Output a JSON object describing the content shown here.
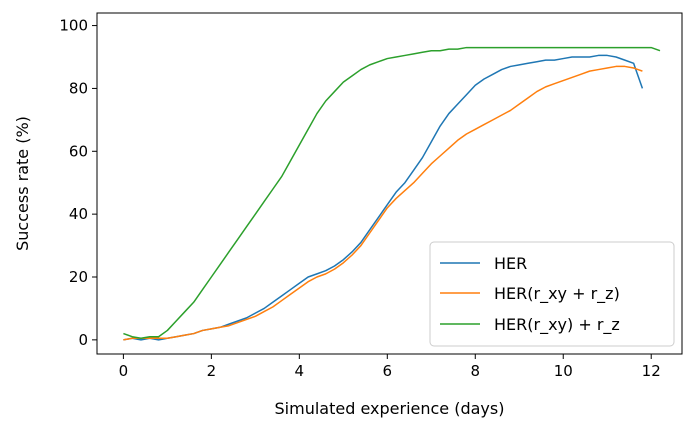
{
  "chart_data": {
    "type": "line",
    "title": "",
    "xlabel": "Simulated experience (days)",
    "ylabel": "Success rate (%)",
    "xlim": [
      -0.6,
      12.7
    ],
    "ylim": [
      -4.5,
      104
    ],
    "xticks": [
      0,
      2,
      4,
      6,
      8,
      10,
      12
    ],
    "yticks": [
      0,
      20,
      40,
      60,
      80,
      100
    ],
    "grid": false,
    "legend": "lower-right",
    "series": [
      {
        "name": "HER",
        "color": "#1f77b4",
        "points": [
          [
            0.0,
            0.0
          ],
          [
            0.2,
            0.5
          ],
          [
            0.4,
            0.0
          ],
          [
            0.6,
            0.5
          ],
          [
            0.8,
            0.0
          ],
          [
            1.0,
            0.5
          ],
          [
            1.2,
            1.0
          ],
          [
            1.4,
            1.5
          ],
          [
            1.6,
            2.0
          ],
          [
            1.8,
            3.0
          ],
          [
            2.0,
            3.5
          ],
          [
            2.2,
            4.0
          ],
          [
            2.4,
            5.0
          ],
          [
            2.6,
            6.0
          ],
          [
            2.8,
            7.0
          ],
          [
            3.0,
            8.5
          ],
          [
            3.2,
            10.0
          ],
          [
            3.4,
            12.0
          ],
          [
            3.6,
            14.0
          ],
          [
            3.8,
            16.0
          ],
          [
            4.0,
            18.0
          ],
          [
            4.2,
            20.0
          ],
          [
            4.4,
            21.0
          ],
          [
            4.6,
            22.0
          ],
          [
            4.8,
            23.5
          ],
          [
            5.0,
            25.5
          ],
          [
            5.2,
            28.0
          ],
          [
            5.4,
            31.0
          ],
          [
            5.6,
            35.0
          ],
          [
            5.8,
            39.0
          ],
          [
            6.0,
            43.0
          ],
          [
            6.2,
            47.0
          ],
          [
            6.4,
            50.0
          ],
          [
            6.6,
            54.0
          ],
          [
            6.8,
            58.0
          ],
          [
            7.0,
            63.0
          ],
          [
            7.2,
            68.0
          ],
          [
            7.4,
            72.0
          ],
          [
            7.6,
            75.0
          ],
          [
            7.8,
            78.0
          ],
          [
            8.0,
            81.0
          ],
          [
            8.2,
            83.0
          ],
          [
            8.4,
            84.5
          ],
          [
            8.6,
            86.0
          ],
          [
            8.8,
            87.0
          ],
          [
            9.0,
            87.5
          ],
          [
            9.2,
            88.0
          ],
          [
            9.4,
            88.5
          ],
          [
            9.6,
            89.0
          ],
          [
            9.8,
            89.0
          ],
          [
            10.0,
            89.5
          ],
          [
            10.2,
            90.0
          ],
          [
            10.4,
            90.0
          ],
          [
            10.6,
            90.0
          ],
          [
            10.8,
            90.5
          ],
          [
            11.0,
            90.5
          ],
          [
            11.2,
            90.0
          ],
          [
            11.4,
            89.0
          ],
          [
            11.6,
            88.0
          ],
          [
            11.8,
            80.0
          ]
        ]
      },
      {
        "name": "HER(r_xy + r_z)",
        "color": "#ff7f0e",
        "points": [
          [
            0.0,
            0.0
          ],
          [
            0.2,
            0.5
          ],
          [
            0.4,
            0.5
          ],
          [
            0.6,
            0.5
          ],
          [
            0.8,
            0.5
          ],
          [
            1.0,
            0.5
          ],
          [
            1.2,
            1.0
          ],
          [
            1.4,
            1.5
          ],
          [
            1.6,
            2.0
          ],
          [
            1.8,
            3.0
          ],
          [
            2.0,
            3.5
          ],
          [
            2.2,
            4.0
          ],
          [
            2.4,
            4.5
          ],
          [
            2.6,
            5.5
          ],
          [
            2.8,
            6.5
          ],
          [
            3.0,
            7.5
          ],
          [
            3.2,
            9.0
          ],
          [
            3.4,
            10.5
          ],
          [
            3.6,
            12.5
          ],
          [
            3.8,
            14.5
          ],
          [
            4.0,
            16.5
          ],
          [
            4.2,
            18.5
          ],
          [
            4.4,
            20.0
          ],
          [
            4.6,
            21.0
          ],
          [
            4.8,
            22.5
          ],
          [
            5.0,
            24.5
          ],
          [
            5.2,
            27.0
          ],
          [
            5.4,
            30.0
          ],
          [
            5.6,
            34.0
          ],
          [
            5.8,
            38.0
          ],
          [
            6.0,
            42.0
          ],
          [
            6.2,
            45.0
          ],
          [
            6.4,
            47.5
          ],
          [
            6.6,
            50.0
          ],
          [
            6.8,
            53.0
          ],
          [
            7.0,
            56.0
          ],
          [
            7.2,
            58.5
          ],
          [
            7.4,
            61.0
          ],
          [
            7.6,
            63.5
          ],
          [
            7.8,
            65.5
          ],
          [
            8.0,
            67.0
          ],
          [
            8.2,
            68.5
          ],
          [
            8.4,
            70.0
          ],
          [
            8.6,
            71.5
          ],
          [
            8.8,
            73.0
          ],
          [
            9.0,
            75.0
          ],
          [
            9.2,
            77.0
          ],
          [
            9.4,
            79.0
          ],
          [
            9.6,
            80.5
          ],
          [
            9.8,
            81.5
          ],
          [
            10.0,
            82.5
          ],
          [
            10.2,
            83.5
          ],
          [
            10.4,
            84.5
          ],
          [
            10.6,
            85.5
          ],
          [
            10.8,
            86.0
          ],
          [
            11.0,
            86.5
          ],
          [
            11.2,
            87.0
          ],
          [
            11.4,
            87.0
          ],
          [
            11.6,
            86.5
          ],
          [
            11.8,
            85.5
          ]
        ]
      },
      {
        "name": "HER(r_xy) + r_z",
        "color": "#2ca02c",
        "points": [
          [
            0.0,
            2.0
          ],
          [
            0.2,
            1.0
          ],
          [
            0.4,
            0.5
          ],
          [
            0.6,
            1.0
          ],
          [
            0.8,
            1.0
          ],
          [
            1.0,
            3.0
          ],
          [
            1.2,
            6.0
          ],
          [
            1.4,
            9.0
          ],
          [
            1.6,
            12.0
          ],
          [
            1.8,
            16.0
          ],
          [
            2.0,
            20.0
          ],
          [
            2.2,
            24.0
          ],
          [
            2.4,
            28.0
          ],
          [
            2.6,
            32.0
          ],
          [
            2.8,
            36.0
          ],
          [
            3.0,
            40.0
          ],
          [
            3.2,
            44.0
          ],
          [
            3.4,
            48.0
          ],
          [
            3.6,
            52.0
          ],
          [
            3.8,
            57.0
          ],
          [
            4.0,
            62.0
          ],
          [
            4.2,
            67.0
          ],
          [
            4.4,
            72.0
          ],
          [
            4.6,
            76.0
          ],
          [
            4.8,
            79.0
          ],
          [
            5.0,
            82.0
          ],
          [
            5.2,
            84.0
          ],
          [
            5.4,
            86.0
          ],
          [
            5.6,
            87.5
          ],
          [
            5.8,
            88.5
          ],
          [
            6.0,
            89.5
          ],
          [
            6.2,
            90.0
          ],
          [
            6.4,
            90.5
          ],
          [
            6.6,
            91.0
          ],
          [
            6.8,
            91.5
          ],
          [
            7.0,
            92.0
          ],
          [
            7.2,
            92.0
          ],
          [
            7.4,
            92.5
          ],
          [
            7.6,
            92.5
          ],
          [
            7.8,
            93.0
          ],
          [
            8.0,
            93.0
          ],
          [
            8.2,
            93.0
          ],
          [
            8.4,
            93.0
          ],
          [
            8.6,
            93.0
          ],
          [
            8.8,
            93.0
          ],
          [
            9.0,
            93.0
          ],
          [
            9.2,
            93.0
          ],
          [
            9.4,
            93.0
          ],
          [
            9.6,
            93.0
          ],
          [
            9.8,
            93.0
          ],
          [
            10.0,
            93.0
          ],
          [
            10.2,
            93.0
          ],
          [
            10.4,
            93.0
          ],
          [
            10.6,
            93.0
          ],
          [
            10.8,
            93.0
          ],
          [
            11.0,
            93.0
          ],
          [
            11.2,
            93.0
          ],
          [
            11.4,
            93.0
          ],
          [
            11.6,
            93.0
          ],
          [
            11.8,
            93.0
          ],
          [
            12.0,
            93.0
          ],
          [
            12.2,
            92.0
          ]
        ]
      }
    ]
  }
}
